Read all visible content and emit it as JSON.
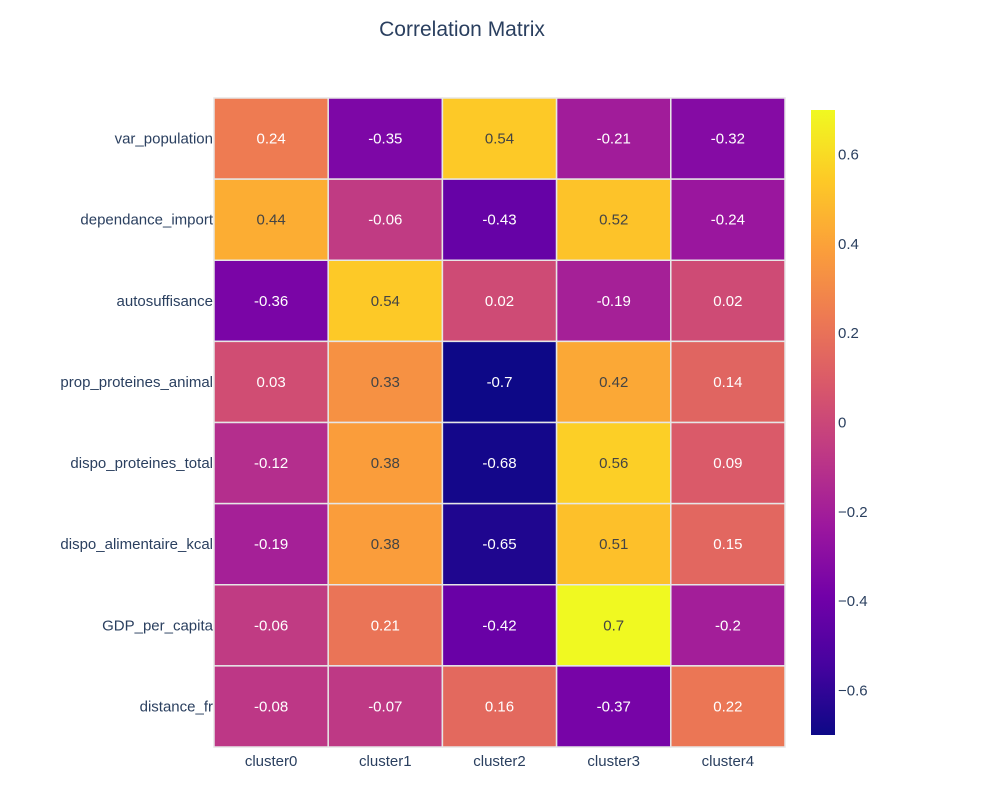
{
  "chart_data": {
    "type": "heatmap",
    "title": "Correlation Matrix",
    "x_categories": [
      "cluster0",
      "cluster1",
      "cluster2",
      "cluster3",
      "cluster4"
    ],
    "y_categories": [
      "var_population",
      "dependance_import",
      "autosuffisance",
      "prop_proteines_animal",
      "dispo_proteines_total",
      "dispo_alimentaire_kcal",
      "GDP_per_capita",
      "distance_fr"
    ],
    "values": [
      [
        0.24,
        -0.35,
        0.54,
        -0.21,
        -0.32
      ],
      [
        0.44,
        -0.06,
        -0.43,
        0.52,
        -0.24
      ],
      [
        -0.36,
        0.54,
        0.02,
        -0.19,
        0.02
      ],
      [
        0.03,
        0.33,
        -0.7,
        0.42,
        0.14
      ],
      [
        -0.12,
        0.38,
        -0.68,
        0.56,
        0.09
      ],
      [
        -0.19,
        0.38,
        -0.65,
        0.51,
        0.15
      ],
      [
        -0.06,
        0.21,
        -0.42,
        0.7,
        -0.2
      ],
      [
        -0.08,
        -0.07,
        0.16,
        -0.37,
        0.22
      ]
    ],
    "value_labels": [
      [
        "0.24",
        "-0.35",
        "0.54",
        "-0.21",
        "-0.32"
      ],
      [
        "0.44",
        "-0.06",
        "-0.43",
        "0.52",
        "-0.24"
      ],
      [
        "-0.36",
        "0.54",
        "0.02",
        "-0.19",
        "0.02"
      ],
      [
        "0.03",
        "0.33",
        "-0.7",
        "0.42",
        "0.14"
      ],
      [
        "-0.12",
        "0.38",
        "-0.68",
        "0.56",
        "0.09"
      ],
      [
        "-0.19",
        "0.38",
        "-0.65",
        "0.51",
        "0.15"
      ],
      [
        "-0.06",
        "0.21",
        "-0.42",
        "0.7",
        "-0.2"
      ],
      [
        "-0.08",
        "-0.07",
        "0.16",
        "-0.37",
        "0.22"
      ]
    ],
    "zmin": -0.7,
    "zmax": 0.7,
    "colorscale": [
      "#0d0887",
      "#46039f",
      "#7201a8",
      "#9c179e",
      "#bd3786",
      "#d8576b",
      "#ed7953",
      "#fb9f3a",
      "#fdca26",
      "#f0f921"
    ],
    "colorbar": {
      "ticks": [
        0.6,
        0.4,
        0.2,
        0,
        -0.2,
        -0.4,
        -0.6
      ],
      "tick_labels": [
        "0.6",
        "0.4",
        "0.2",
        "0",
        "−0.2",
        "−0.4",
        "−0.6"
      ]
    },
    "text_color_light": "#ffffff",
    "text_color_dark": "#444444",
    "grid": false,
    "legend": "colorbar-right"
  }
}
